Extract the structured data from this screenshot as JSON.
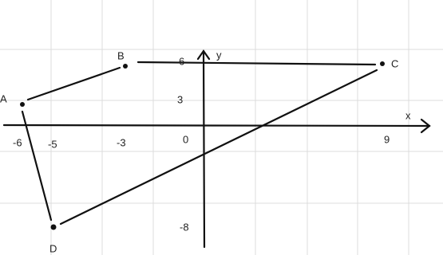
{
  "points": [
    {
      "label": "A"
    },
    {
      "label": "B"
    },
    {
      "label": "C"
    },
    {
      "label": "D"
    }
  ],
  "axes": {
    "x_label": "x",
    "y_label": "y"
  },
  "tick_labels": [
    "6",
    "3",
    "-6",
    "-5",
    "-3",
    "0",
    "9",
    "-8"
  ]
}
